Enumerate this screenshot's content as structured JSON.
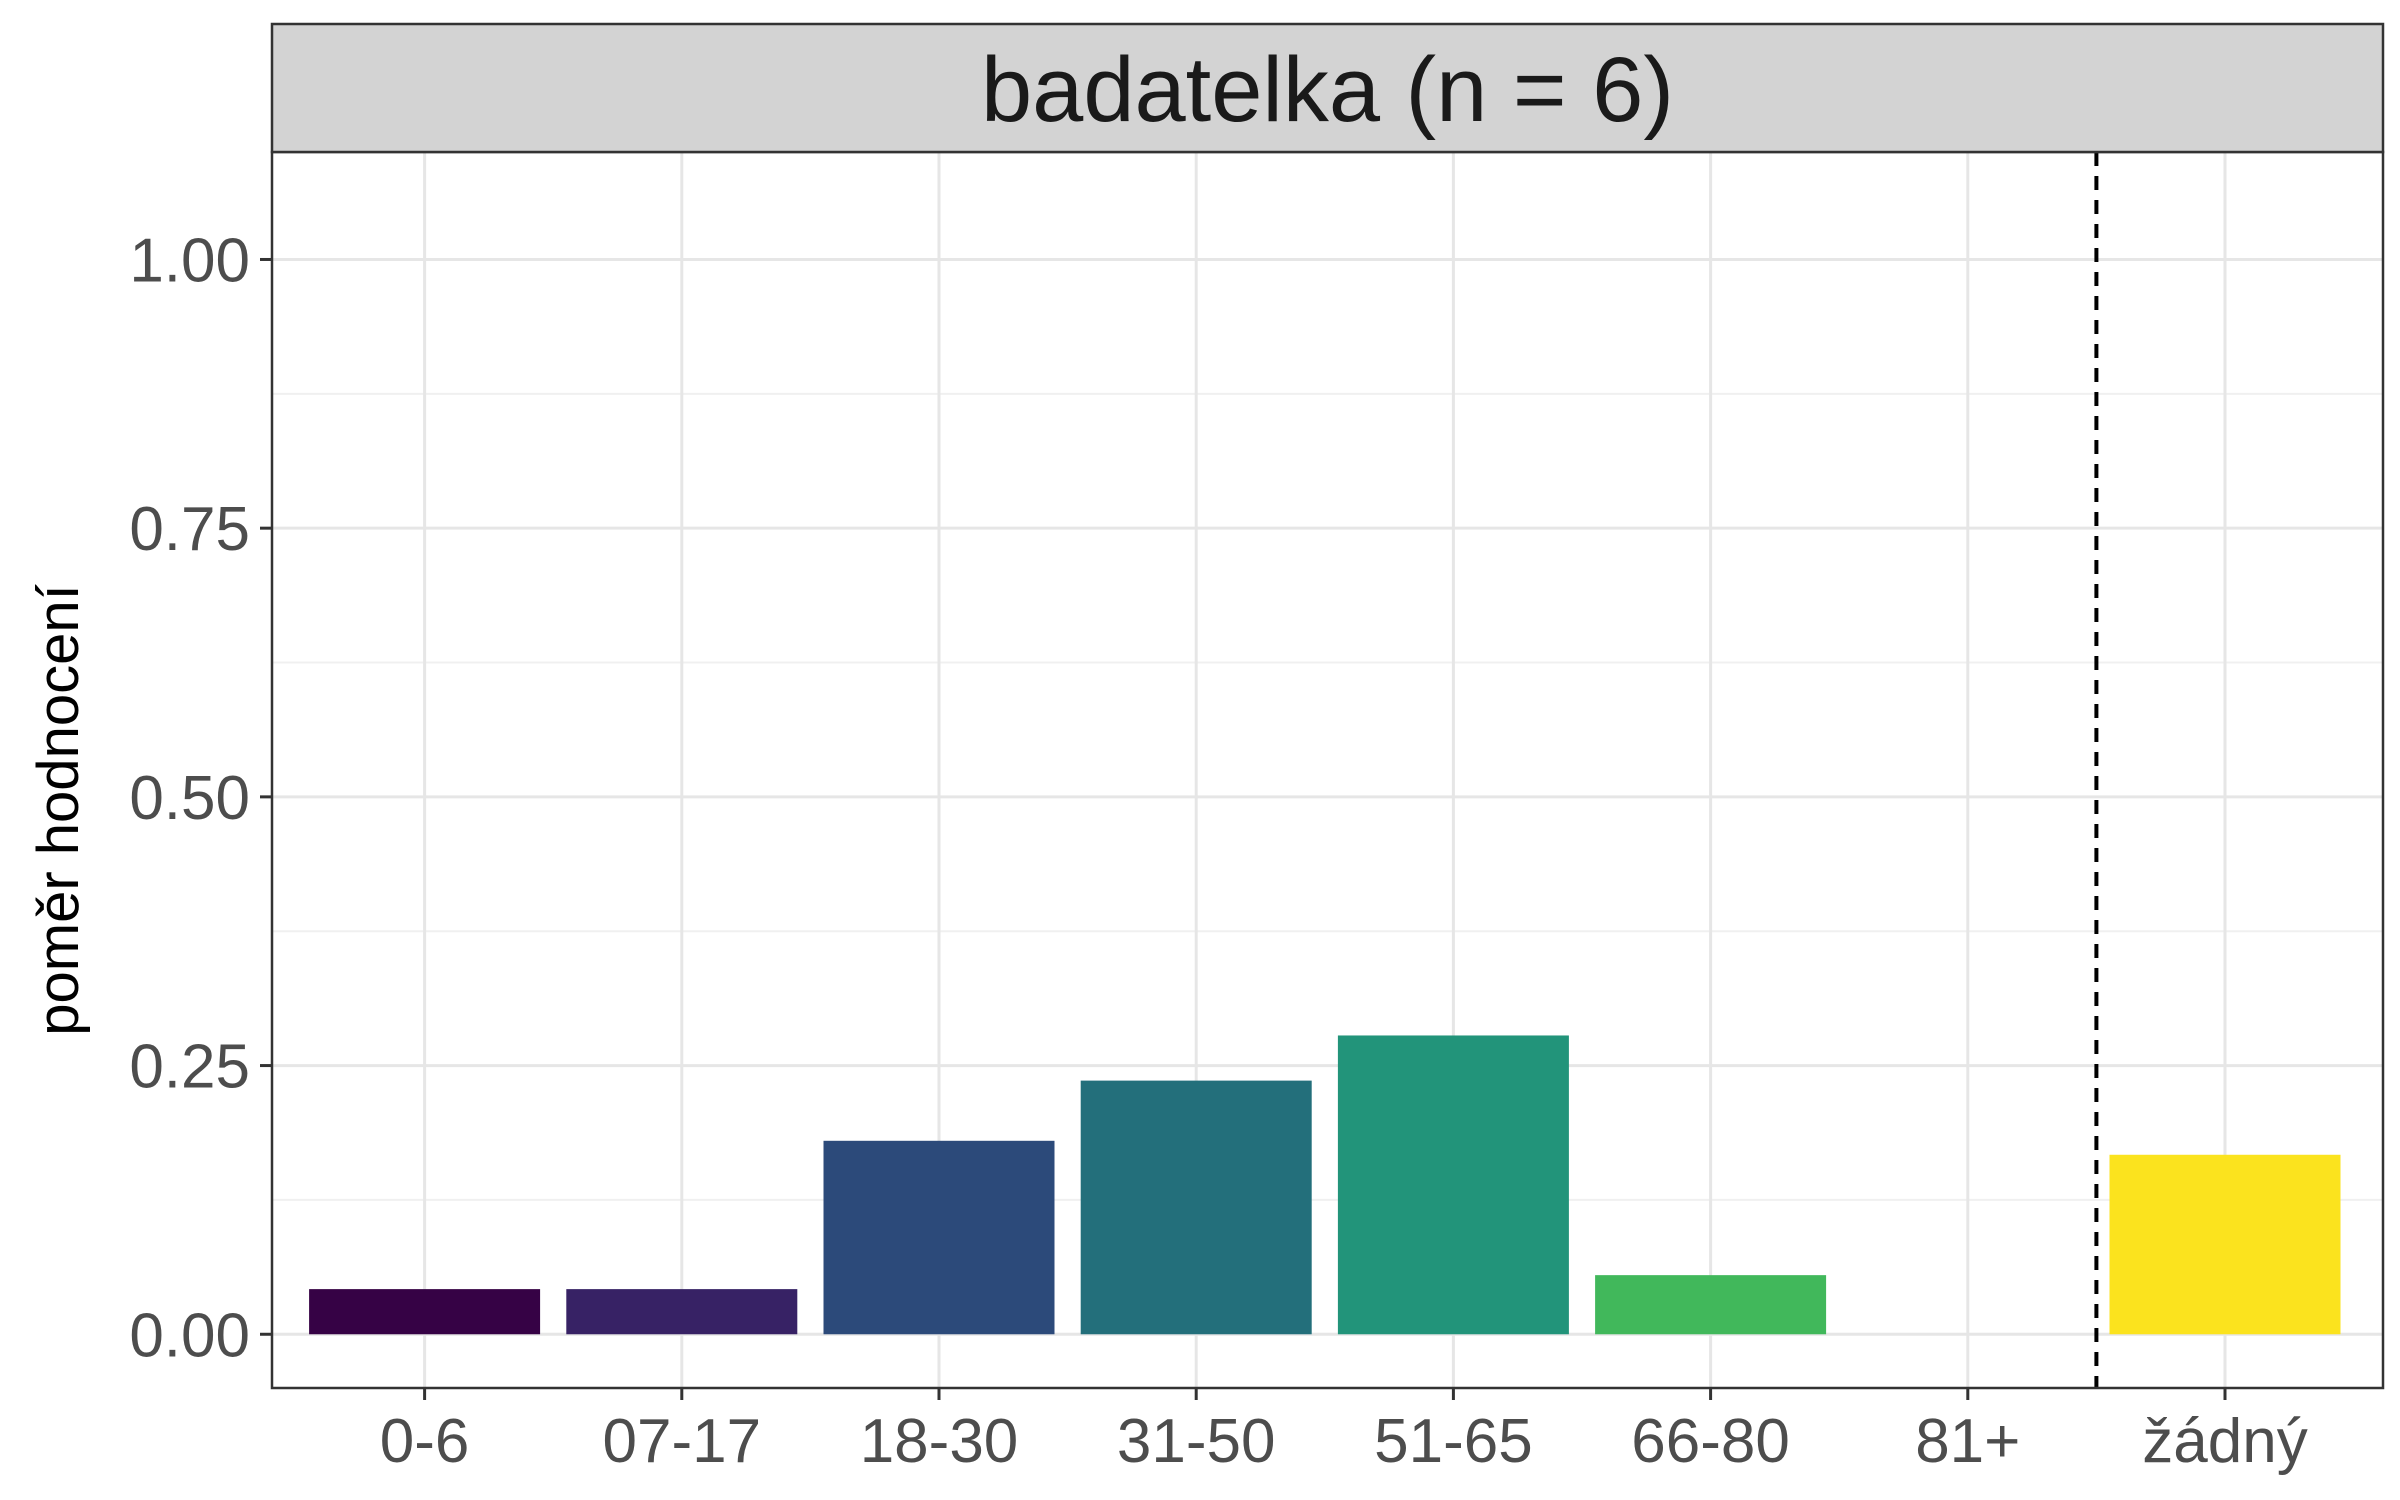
{
  "chart_data": {
    "type": "bar",
    "facet_title": "badatelka (n = 6)",
    "ylabel": "poměr hodnocení",
    "xlabel": "",
    "categories": [
      "0-6",
      "07-17",
      "18-30",
      "31-50",
      "51-65",
      "66-80",
      "81+",
      "žádný"
    ],
    "values": [
      0.042,
      0.042,
      0.18,
      0.236,
      0.278,
      0.055,
      0,
      0.167
    ],
    "colors": [
      "#360245",
      "#372265",
      "#2C4A7A",
      "#236F7B",
      "#22947A",
      "#41B85B",
      "#90D743",
      "#FBE31E"
    ],
    "ylim": [
      -0.05,
      1.1
    ],
    "yticks": [
      0,
      0.25,
      0.5,
      0.75,
      1.0
    ],
    "ytick_labels": [
      "0.00",
      "0.25",
      "0.50",
      "0.75",
      "1.00"
    ],
    "separator_after_category": "81+",
    "grid": true,
    "legend": "none"
  }
}
